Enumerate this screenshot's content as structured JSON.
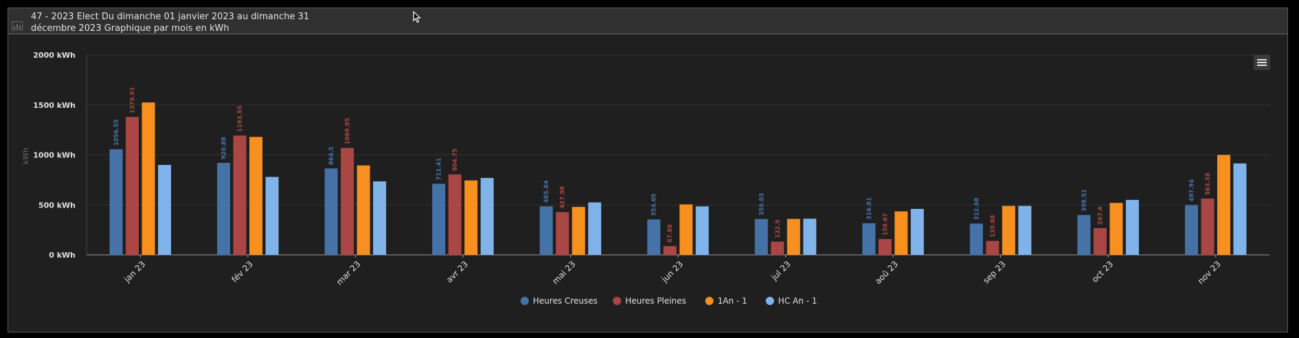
{
  "header": {
    "title": "47 - 2023 Elect Du dimanche 01 janvier 2023 au dimanche 31 décembre 2023 Graphique par mois en kWh",
    "icon": "chart-icon"
  },
  "menu": {
    "icon": "hamburger-menu-icon"
  },
  "chart_data": {
    "type": "bar",
    "title": "",
    "ylabel": "kWh",
    "ylim": [
      0,
      2000
    ],
    "yticks": [
      "0 kWh",
      "500 kWh",
      "1000 kWh",
      "1500 kWh",
      "2000 kWh"
    ],
    "ytick_values": [
      0,
      500,
      1000,
      1500,
      2000
    ],
    "grid": true,
    "legend_position": "bottom",
    "categories": [
      "jan 23",
      "fév 23",
      "mar 23",
      "avr 23",
      "mai 23",
      "jun 23",
      "jul 23",
      "aoû 23",
      "sep 23",
      "oct 23",
      "nov 23"
    ],
    "series": [
      {
        "name": "Heures Creuses",
        "color": "#4572a7",
        "values": [
          1056.55,
          920.88,
          864.5,
          711.41,
          485.84,
          354.05,
          359.03,
          316.81,
          312.68,
          398.51,
          497.94
        ],
        "labels": [
          "1056.55",
          "920.88",
          "864.5",
          "711.41",
          "485.84",
          "354.05",
          "359.03",
          "316.81",
          "312.68",
          "398.51",
          "497.94"
        ]
      },
      {
        "name": "Heures Pleines",
        "color": "#aa4643",
        "values": [
          1379.91,
          1193.55,
          1069.95,
          804.75,
          427.98,
          87.88,
          132.9,
          158.67,
          139.88,
          267.6,
          563.58
        ],
        "labels": [
          "1379.91",
          "1193.55",
          "1069.95",
          "804.75",
          "427.98",
          "87.88",
          "132.9",
          "158.67",
          "139.88",
          "267.6",
          "563.58"
        ]
      },
      {
        "name": "1An - 1",
        "color": "#f7901e",
        "values": [
          1525,
          1180,
          895,
          745,
          480,
          505,
          360,
          435,
          490,
          520,
          1000
        ],
        "labels": []
      },
      {
        "name": "HC An - 1",
        "color": "#7fb3ea",
        "values": [
          900,
          780,
          735,
          770,
          525,
          485,
          362,
          460,
          490,
          550,
          915
        ],
        "labels": []
      }
    ]
  }
}
